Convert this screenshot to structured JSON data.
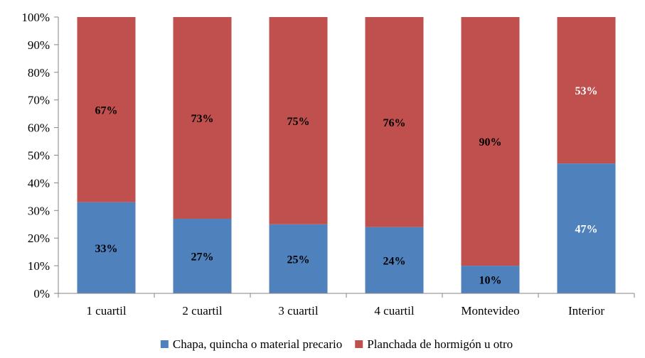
{
  "chart_data": {
    "type": "bar",
    "stacked": true,
    "categories": [
      "1 cuartil",
      "2 cuartil",
      "3 cuartil",
      "4 cuartil",
      "Montevideo",
      "Interior"
    ],
    "series": [
      {
        "name": "Chapa, quincha o material precario",
        "color": "#4f81bd",
        "values": [
          33,
          27,
          25,
          24,
          10,
          47
        ],
        "labels": [
          "33%",
          "27%",
          "25%",
          "24%",
          "10%",
          "47%"
        ],
        "label_colors": [
          "#000000",
          "#000000",
          "#000000",
          "#000000",
          "#000000",
          "#ffffff"
        ]
      },
      {
        "name": "Planchada de hormigón u otro",
        "color": "#c0504d",
        "values": [
          67,
          73,
          75,
          76,
          90,
          53
        ],
        "labels": [
          "67%",
          "73%",
          "75%",
          "76%",
          "90%",
          "53%"
        ],
        "label_colors": [
          "#000000",
          "#000000",
          "#000000",
          "#000000",
          "#000000",
          "#ffffff"
        ]
      }
    ],
    "ylim": [
      0,
      100
    ],
    "yticks": [
      "0%",
      "10%",
      "20%",
      "30%",
      "40%",
      "50%",
      "60%",
      "70%",
      "80%",
      "90%",
      "100%"
    ],
    "grid": false,
    "legend_position": "bottom",
    "title": "",
    "xlabel": "",
    "ylabel": ""
  }
}
